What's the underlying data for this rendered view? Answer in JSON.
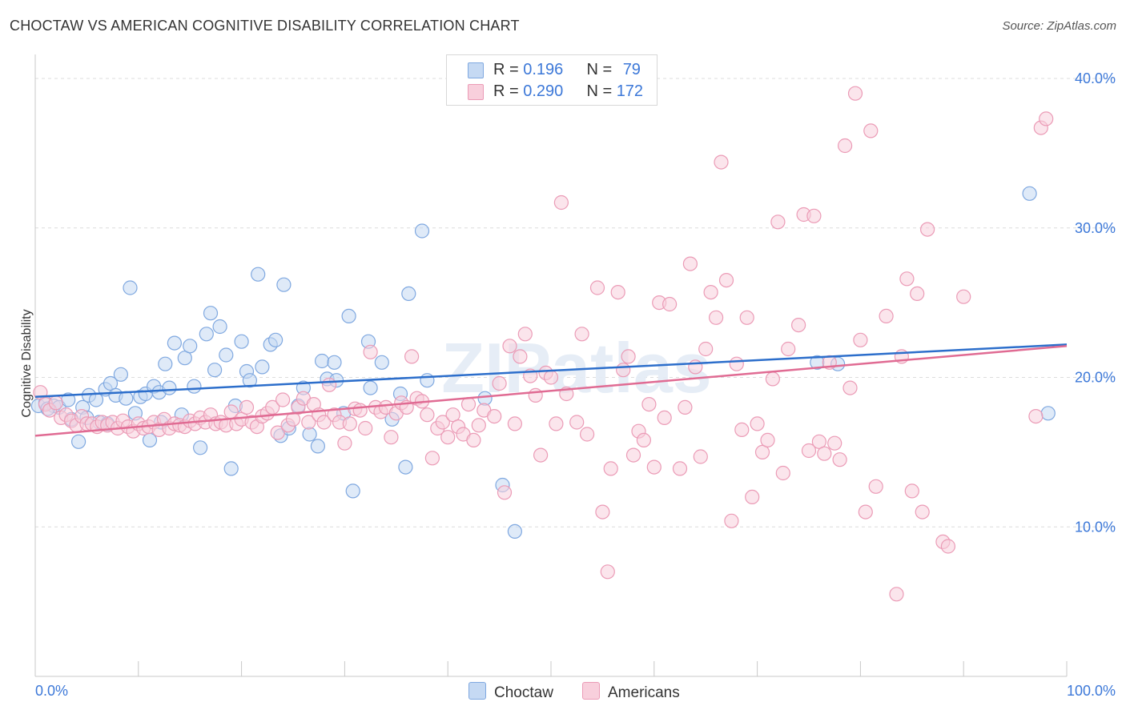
{
  "chart_data": {
    "type": "scatter",
    "title": "CHOCTAW VS AMERICAN COGNITIVE DISABILITY CORRELATION CHART",
    "source": "Source: ZipAtlas.com",
    "xlabel": "",
    "ylabel": "Cognitive Disability",
    "xlim": [
      0,
      100
    ],
    "ylim": [
      0,
      41.5
    ],
    "x_tick_labels": [
      "0.0%",
      "100.0%"
    ],
    "y_ticks": [
      10,
      20,
      30,
      40
    ],
    "y_tick_labels": [
      "10.0%",
      "20.0%",
      "30.0%",
      "40.0%"
    ],
    "watermark": "ZIPatlas",
    "legend": [
      {
        "name": "Choctaw",
        "r_label": "R = ",
        "r": "0.196",
        "n_label": "N = ",
        "n": "79"
      },
      {
        "name": "Americans",
        "r_label": "R = ",
        "r": "0.290",
        "n_label": "N = ",
        "n": "172"
      }
    ],
    "series": [
      {
        "name": "Choctaw",
        "color": "#7fa8e0",
        "fill": "#c5d9f3",
        "line_color": "#2c6ecb",
        "trend": {
          "x": [
            0,
            100
          ],
          "y": [
            18.7,
            22.2
          ]
        },
        "points": [
          [
            0.3,
            18.1
          ],
          [
            1.0,
            18.3
          ],
          [
            1.8,
            18.1
          ],
          [
            2.3,
            18.0
          ],
          [
            3.2,
            18.5
          ],
          [
            3.5,
            17.2
          ],
          [
            4.2,
            15.7
          ],
          [
            4.6,
            18.0
          ],
          [
            5.2,
            18.8
          ],
          [
            5.9,
            18.5
          ],
          [
            6.2,
            17.0
          ],
          [
            6.8,
            19.2
          ],
          [
            7.3,
            19.6
          ],
          [
            7.8,
            18.8
          ],
          [
            8.3,
            20.2
          ],
          [
            8.8,
            18.6
          ],
          [
            9.2,
            26.0
          ],
          [
            9.7,
            17.6
          ],
          [
            10.2,
            18.7
          ],
          [
            10.7,
            18.9
          ],
          [
            11.1,
            15.8
          ],
          [
            11.5,
            19.4
          ],
          [
            12.0,
            19.0
          ],
          [
            12.6,
            20.9
          ],
          [
            13.0,
            19.3
          ],
          [
            13.5,
            22.3
          ],
          [
            14.2,
            17.5
          ],
          [
            14.5,
            21.3
          ],
          [
            15.0,
            22.1
          ],
          [
            15.4,
            19.4
          ],
          [
            16.0,
            15.3
          ],
          [
            16.6,
            22.9
          ],
          [
            17.0,
            24.3
          ],
          [
            17.4,
            20.5
          ],
          [
            17.9,
            23.4
          ],
          [
            18.5,
            21.5
          ],
          [
            19.0,
            13.9
          ],
          [
            19.4,
            18.1
          ],
          [
            20.0,
            22.4
          ],
          [
            20.5,
            20.4
          ],
          [
            20.8,
            19.8
          ],
          [
            21.6,
            26.9
          ],
          [
            22.0,
            20.7
          ],
          [
            22.8,
            22.2
          ],
          [
            23.3,
            22.5
          ],
          [
            23.8,
            16.1
          ],
          [
            24.1,
            26.2
          ],
          [
            24.6,
            16.6
          ],
          [
            25.5,
            18.1
          ],
          [
            26.0,
            19.3
          ],
          [
            26.6,
            16.2
          ],
          [
            27.4,
            15.4
          ],
          [
            27.8,
            21.1
          ],
          [
            28.3,
            19.9
          ],
          [
            29.0,
            21.0
          ],
          [
            29.2,
            19.8
          ],
          [
            29.9,
            17.6
          ],
          [
            30.4,
            24.1
          ],
          [
            30.8,
            12.4
          ],
          [
            32.3,
            22.4
          ],
          [
            32.5,
            19.3
          ],
          [
            33.6,
            21.0
          ],
          [
            34.6,
            17.2
          ],
          [
            35.4,
            18.9
          ],
          [
            35.9,
            14.0
          ],
          [
            36.2,
            25.6
          ],
          [
            37.5,
            29.8
          ],
          [
            38.0,
            19.8
          ],
          [
            43.6,
            18.6
          ],
          [
            45.3,
            12.8
          ],
          [
            46.5,
            9.7
          ],
          [
            75.8,
            21.0
          ],
          [
            77.8,
            20.9
          ],
          [
            96.4,
            32.3
          ],
          [
            98.2,
            17.6
          ],
          [
            1.2,
            17.9
          ],
          [
            7.0,
            16.9
          ],
          [
            12.2,
            17.0
          ],
          [
            5.0,
            17.3
          ]
        ]
      },
      {
        "name": "Americans",
        "color": "#eb9bb6",
        "fill": "#f8cfdc",
        "line_color": "#e06b93",
        "trend": {
          "x": [
            0,
            100
          ],
          "y": [
            16.1,
            22.1
          ]
        },
        "points": [
          [
            0.5,
            19.0
          ],
          [
            1.0,
            18.2
          ],
          [
            1.4,
            17.8
          ],
          [
            2.0,
            18.3
          ],
          [
            2.5,
            17.3
          ],
          [
            3.0,
            17.5
          ],
          [
            3.5,
            17.1
          ],
          [
            4.0,
            16.8
          ],
          [
            4.5,
            17.4
          ],
          [
            5.0,
            16.9
          ],
          [
            5.5,
            16.9
          ],
          [
            6.0,
            16.7
          ],
          [
            6.5,
            17.0
          ],
          [
            7.0,
            16.8
          ],
          [
            7.5,
            17.0
          ],
          [
            8.0,
            16.6
          ],
          [
            8.5,
            17.1
          ],
          [
            9.0,
            16.7
          ],
          [
            9.5,
            16.4
          ],
          [
            10.0,
            16.9
          ],
          [
            10.5,
            16.6
          ],
          [
            11.0,
            16.7
          ],
          [
            11.5,
            17.0
          ],
          [
            12.0,
            16.5
          ],
          [
            12.5,
            17.2
          ],
          [
            13.0,
            16.6
          ],
          [
            13.5,
            16.9
          ],
          [
            14.0,
            16.8
          ],
          [
            14.5,
            16.7
          ],
          [
            15.0,
            17.1
          ],
          [
            15.5,
            16.9
          ],
          [
            16.0,
            17.3
          ],
          [
            16.5,
            17.0
          ],
          [
            17.0,
            17.5
          ],
          [
            17.5,
            16.9
          ],
          [
            18.0,
            17.0
          ],
          [
            18.5,
            16.8
          ],
          [
            19.0,
            17.7
          ],
          [
            19.5,
            16.9
          ],
          [
            20.0,
            17.2
          ],
          [
            20.5,
            18.0
          ],
          [
            21.0,
            17.0
          ],
          [
            21.5,
            16.7
          ],
          [
            22.0,
            17.4
          ],
          [
            22.5,
            17.6
          ],
          [
            23.0,
            18.0
          ],
          [
            23.5,
            16.3
          ],
          [
            24.0,
            18.5
          ],
          [
            24.5,
            16.8
          ],
          [
            25.0,
            17.2
          ],
          [
            25.5,
            18.0
          ],
          [
            26.0,
            18.6
          ],
          [
            26.5,
            17.0
          ],
          [
            27.0,
            18.2
          ],
          [
            27.5,
            17.5
          ],
          [
            28.0,
            17.0
          ],
          [
            28.5,
            19.5
          ],
          [
            29.0,
            17.5
          ],
          [
            29.5,
            17.0
          ],
          [
            30.0,
            15.6
          ],
          [
            30.5,
            16.9
          ],
          [
            31.0,
            17.9
          ],
          [
            31.5,
            17.8
          ],
          [
            32.0,
            16.6
          ],
          [
            32.5,
            21.7
          ],
          [
            33.0,
            18.0
          ],
          [
            33.5,
            17.7
          ],
          [
            34.0,
            18.0
          ],
          [
            34.5,
            16.0
          ],
          [
            35.0,
            17.6
          ],
          [
            35.5,
            18.3
          ],
          [
            36.0,
            18.0
          ],
          [
            36.5,
            21.4
          ],
          [
            37.0,
            18.6
          ],
          [
            37.5,
            18.4
          ],
          [
            38.0,
            17.5
          ],
          [
            38.5,
            14.6
          ],
          [
            39.0,
            16.6
          ],
          [
            39.5,
            17.0
          ],
          [
            40.0,
            16.0
          ],
          [
            40.5,
            17.5
          ],
          [
            41.0,
            16.7
          ],
          [
            41.5,
            16.2
          ],
          [
            42.0,
            18.2
          ],
          [
            42.5,
            15.8
          ],
          [
            43.0,
            16.8
          ],
          [
            43.5,
            17.8
          ],
          [
            44.5,
            17.4
          ],
          [
            45.0,
            19.6
          ],
          [
            45.5,
            12.3
          ],
          [
            46.0,
            22.1
          ],
          [
            46.5,
            16.9
          ],
          [
            47.0,
            21.4
          ],
          [
            47.5,
            22.9
          ],
          [
            48.0,
            20.1
          ],
          [
            48.5,
            18.8
          ],
          [
            49.0,
            14.8
          ],
          [
            49.5,
            20.3
          ],
          [
            50.0,
            20.0
          ],
          [
            50.5,
            16.9
          ],
          [
            51.0,
            31.7
          ],
          [
            51.5,
            18.9
          ],
          [
            52.5,
            17.0
          ],
          [
            53.0,
            22.9
          ],
          [
            53.5,
            16.2
          ],
          [
            54.5,
            26.0
          ],
          [
            55.0,
            11.0
          ],
          [
            55.5,
            7.0
          ],
          [
            55.8,
            13.9
          ],
          [
            56.5,
            25.7
          ],
          [
            57.0,
            20.5
          ],
          [
            57.5,
            21.4
          ],
          [
            58.0,
            14.8
          ],
          [
            58.5,
            16.4
          ],
          [
            59.0,
            15.8
          ],
          [
            59.5,
            18.2
          ],
          [
            60.0,
            14.0
          ],
          [
            60.5,
            25.0
          ],
          [
            61.0,
            17.3
          ],
          [
            61.5,
            24.9
          ],
          [
            62.5,
            13.9
          ],
          [
            63.0,
            18.0
          ],
          [
            63.5,
            27.6
          ],
          [
            64.0,
            20.7
          ],
          [
            64.5,
            14.7
          ],
          [
            65.0,
            21.9
          ],
          [
            65.5,
            25.7
          ],
          [
            66.0,
            24.0
          ],
          [
            66.5,
            34.4
          ],
          [
            67.0,
            26.5
          ],
          [
            67.5,
            10.4
          ],
          [
            68.0,
            20.9
          ],
          [
            68.5,
            16.5
          ],
          [
            69.0,
            24.0
          ],
          [
            69.5,
            12.0
          ],
          [
            70.0,
            16.9
          ],
          [
            70.5,
            15.0
          ],
          [
            71.0,
            15.8
          ],
          [
            71.5,
            19.9
          ],
          [
            72.0,
            30.4
          ],
          [
            72.5,
            13.6
          ],
          [
            73.0,
            21.9
          ],
          [
            74.0,
            23.5
          ],
          [
            74.5,
            30.9
          ],
          [
            75.0,
            15.1
          ],
          [
            75.5,
            30.8
          ],
          [
            76.0,
            15.7
          ],
          [
            76.5,
            14.9
          ],
          [
            77.0,
            21.0
          ],
          [
            77.5,
            15.6
          ],
          [
            78.0,
            14.5
          ],
          [
            78.5,
            35.5
          ],
          [
            79.0,
            19.3
          ],
          [
            79.5,
            39.0
          ],
          [
            80.0,
            22.5
          ],
          [
            80.5,
            11.0
          ],
          [
            81.0,
            36.5
          ],
          [
            81.5,
            12.7
          ],
          [
            82.5,
            24.1
          ],
          [
            83.5,
            5.5
          ],
          [
            84.0,
            21.4
          ],
          [
            84.5,
            26.6
          ],
          [
            85.0,
            12.4
          ],
          [
            85.5,
            25.6
          ],
          [
            86.0,
            11.0
          ],
          [
            86.5,
            29.9
          ],
          [
            88.0,
            9.0
          ],
          [
            88.5,
            8.7
          ],
          [
            90.0,
            25.4
          ],
          [
            97.0,
            17.4
          ],
          [
            97.5,
            36.7
          ],
          [
            98.0,
            37.3
          ]
        ]
      }
    ]
  }
}
